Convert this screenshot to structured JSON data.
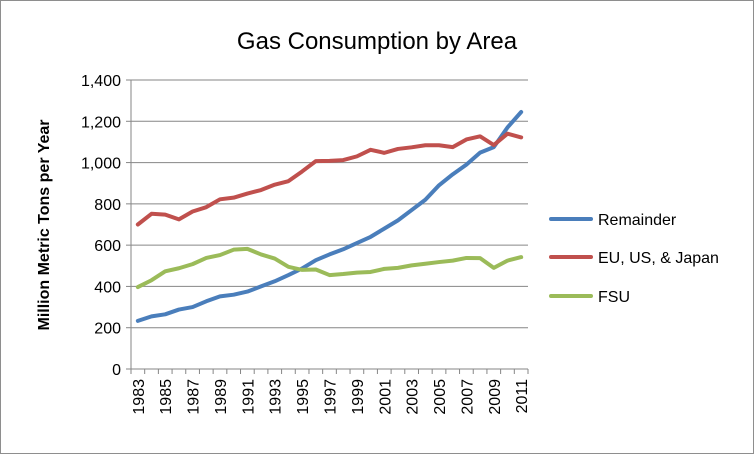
{
  "chart_data": {
    "type": "line",
    "title": "Gas Consumption by Area",
    "xlabel": "",
    "ylabel": "Million Metric Tons per Year",
    "x": [
      1983,
      1984,
      1985,
      1986,
      1987,
      1988,
      1989,
      1990,
      1991,
      1992,
      1993,
      1994,
      1995,
      1996,
      1997,
      1998,
      1999,
      2000,
      2001,
      2002,
      2003,
      2004,
      2005,
      2006,
      2007,
      2008,
      2009,
      2010,
      2011
    ],
    "x_tick_labels": [
      "1983",
      "1985",
      "1987",
      "1989",
      "1991",
      "1993",
      "1995",
      "1997",
      "1999",
      "2001",
      "2003",
      "2005",
      "2007",
      "2009",
      "2011"
    ],
    "ylim": [
      0,
      1400
    ],
    "y_tick_labels": [
      "0",
      "200",
      "400",
      "600",
      "800",
      "1,000",
      "1,200",
      "1,400"
    ],
    "grid": "horizontal",
    "legend_position": "right",
    "series": [
      {
        "name": "Remainder",
        "color": "#4a7ebb",
        "values": [
          233,
          255,
          265,
          288,
          300,
          328,
          352,
          360,
          375,
          400,
          425,
          455,
          487,
          527,
          555,
          580,
          610,
          640,
          680,
          720,
          770,
          820,
          890,
          943,
          990,
          1048,
          1075,
          1170,
          1245
        ]
      },
      {
        "name": "EU, US, & Japan",
        "color": "#c0504d",
        "values": [
          700,
          752,
          748,
          725,
          763,
          784,
          822,
          830,
          850,
          867,
          893,
          910,
          957,
          1007,
          1008,
          1012,
          1030,
          1062,
          1047,
          1066,
          1074,
          1084,
          1084,
          1075,
          1112,
          1127,
          1085,
          1140,
          1122
        ]
      },
      {
        "name": "FSU",
        "color": "#9bbb59",
        "values": [
          397,
          430,
          473,
          488,
          508,
          538,
          552,
          578,
          582,
          555,
          535,
          495,
          480,
          482,
          455,
          460,
          467,
          470,
          485,
          490,
          502,
          510,
          518,
          525,
          538,
          537,
          490,
          525,
          542
        ]
      }
    ]
  }
}
